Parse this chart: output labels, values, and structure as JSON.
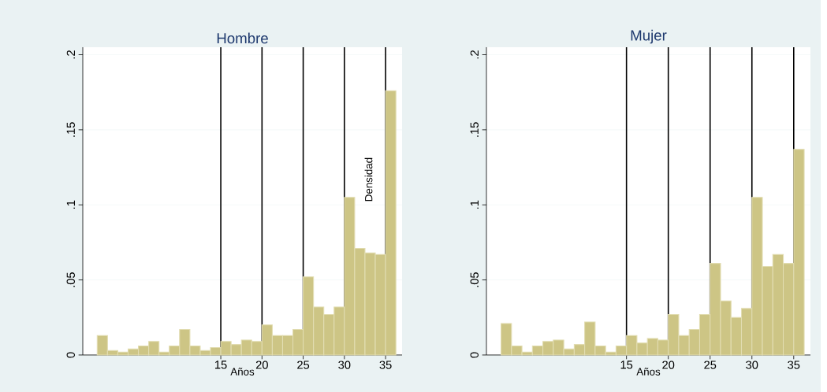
{
  "chart_data": [
    {
      "type": "histogram",
      "title": "Hombre",
      "xlabel": "Años",
      "color": "#cdc585",
      "bins": [
        0,
        1.25,
        2.5,
        3.75,
        5,
        6.25,
        7.5,
        8.75,
        10,
        11.25,
        12.5,
        13.75,
        15,
        16.25,
        17.5,
        18.75,
        20,
        21.25,
        22.5,
        23.75,
        25,
        26.25,
        27.5,
        28.75,
        30,
        31.25,
        32.5,
        33.75,
        35,
        36.25
      ],
      "values": [
        0.013,
        0.003,
        0.002,
        0.004,
        0.006,
        0.009,
        0.002,
        0.006,
        0.017,
        0.006,
        0.003,
        0.005,
        0.009,
        0.007,
        0.01,
        0.009,
        0.02,
        0.013,
        0.013,
        0.017,
        0.052,
        0.032,
        0.027,
        0.032,
        0.105,
        0.071,
        0.068,
        0.067,
        0.176
      ],
      "xlim": [
        -1.75,
        37
      ],
      "ylim": [
        0,
        0.205
      ],
      "xticks": [
        15,
        20,
        25,
        30,
        35
      ],
      "yticks": [
        {
          "value": 0,
          "label": "0"
        },
        {
          "value": 0.05,
          "label": ".05"
        },
        {
          "value": 0.1,
          "label": ".1"
        },
        {
          "value": 0.15,
          "label": ".15"
        },
        {
          "value": 0.2,
          "label": ".2"
        }
      ],
      "grid": "y",
      "ref_lines": [
        {
          "axis": "x",
          "value": 15,
          "color": "#000000"
        },
        {
          "axis": "x",
          "value": 20,
          "color": "#000000"
        },
        {
          "axis": "x",
          "value": 25,
          "color": "#000000"
        },
        {
          "axis": "x",
          "value": 30,
          "color": "#000000"
        },
        {
          "axis": "x",
          "value": 35,
          "color": "#000000"
        }
      ],
      "annotations": [
        "Densidad"
      ]
    },
    {
      "type": "histogram",
      "title": "Mujer",
      "xlabel": "Años",
      "color": "#cdc585",
      "bins": [
        0,
        1.25,
        2.5,
        3.75,
        5,
        6.25,
        7.5,
        8.75,
        10,
        11.25,
        12.5,
        13.75,
        15,
        16.25,
        17.5,
        18.75,
        20,
        21.25,
        22.5,
        23.75,
        25,
        26.25,
        27.5,
        28.75,
        30,
        31.25,
        32.5,
        33.75,
        35,
        36.25
      ],
      "values": [
        0.021,
        0.006,
        0.002,
        0.006,
        0.009,
        0.01,
        0.004,
        0.007,
        0.022,
        0.006,
        0.002,
        0.006,
        0.013,
        0.008,
        0.011,
        0.01,
        0.027,
        0.013,
        0.017,
        0.027,
        0.061,
        0.036,
        0.025,
        0.031,
        0.105,
        0.059,
        0.067,
        0.061,
        0.137
      ],
      "xlim": [
        -1.75,
        37
      ],
      "ylim": [
        0,
        0.205
      ],
      "xticks": [
        15,
        20,
        25,
        30,
        35
      ],
      "yticks": [
        {
          "value": 0,
          "label": "0"
        },
        {
          "value": 0.05,
          "label": ".05"
        },
        {
          "value": 0.1,
          "label": ".1"
        },
        {
          "value": 0.15,
          "label": ".15"
        },
        {
          "value": 0.2,
          "label": ".2"
        }
      ],
      "grid": "y",
      "ref_lines": [
        {
          "axis": "x",
          "value": 15,
          "color": "#000000"
        },
        {
          "axis": "x",
          "value": 20,
          "color": "#000000"
        },
        {
          "axis": "x",
          "value": 25,
          "color": "#000000"
        },
        {
          "axis": "x",
          "value": 30,
          "color": "#000000"
        },
        {
          "axis": "x",
          "value": 35,
          "color": "#000000"
        }
      ]
    }
  ]
}
